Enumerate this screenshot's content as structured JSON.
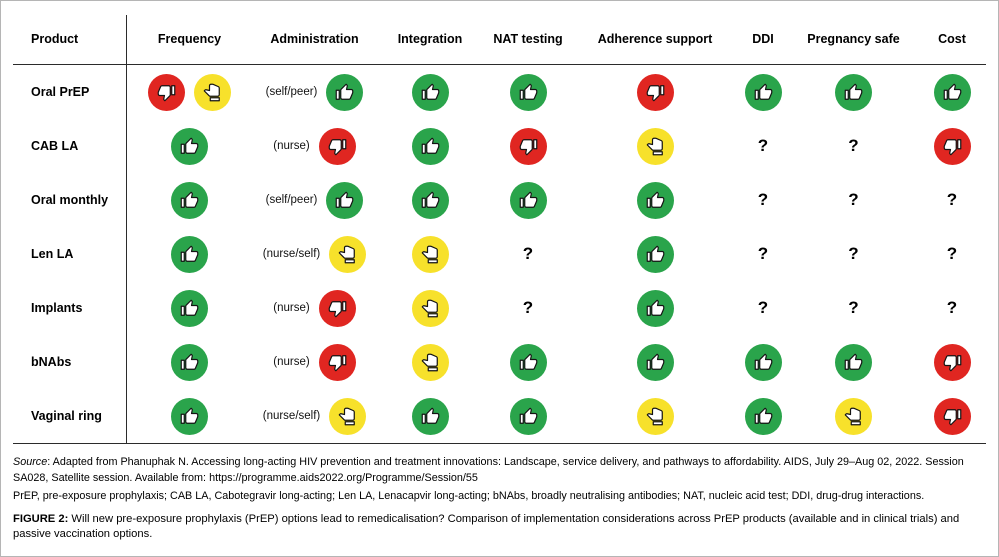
{
  "colors": {
    "green": "#2aa44b",
    "red": "#e02621",
    "yellow": "#f7e12b",
    "thumb_fill": "#ffffff",
    "thumb_stroke": "#141414",
    "line": "#2b2b2b"
  },
  "table": {
    "columns": [
      "Product",
      "Frequency",
      "Administration",
      "Integration",
      "NAT testing",
      "Adherence support",
      "DDI",
      "Pregnancy safe",
      "Cost"
    ],
    "question_mark": "?",
    "legend": {
      "positive": "green thumbs-up icon",
      "negative": "red thumbs-down icon",
      "neutral": "yellow thumbs-sideways icon",
      "unknown": "question mark"
    },
    "rows": [
      {
        "product": "Oral PrEP",
        "cells": [
          [
            "negative",
            "neutral"
          ],
          [
            "(self/peer)",
            "positive"
          ],
          [
            "positive"
          ],
          [
            "positive"
          ],
          [
            "negative"
          ],
          [
            "positive"
          ],
          [
            "positive"
          ],
          [
            "positive"
          ]
        ]
      },
      {
        "product": "CAB LA",
        "cells": [
          [
            "positive"
          ],
          [
            "(nurse)",
            "negative"
          ],
          [
            "positive"
          ],
          [
            "negative"
          ],
          [
            "neutral"
          ],
          [
            "unknown"
          ],
          [
            "unknown"
          ],
          [
            "negative"
          ]
        ]
      },
      {
        "product": "Oral monthly",
        "cells": [
          [
            "positive"
          ],
          [
            "(self/peer)",
            "positive"
          ],
          [
            "positive"
          ],
          [
            "positive"
          ],
          [
            "positive"
          ],
          [
            "unknown"
          ],
          [
            "unknown"
          ],
          [
            "unknown"
          ]
        ]
      },
      {
        "product": "Len LA",
        "cells": [
          [
            "positive"
          ],
          [
            "(nurse/self)",
            "neutral"
          ],
          [
            "neutral"
          ],
          [
            "unknown"
          ],
          [
            "positive"
          ],
          [
            "unknown"
          ],
          [
            "unknown"
          ],
          [
            "unknown"
          ]
        ]
      },
      {
        "product": "Implants",
        "cells": [
          [
            "positive"
          ],
          [
            "(nurse)",
            "negative"
          ],
          [
            "neutral"
          ],
          [
            "unknown"
          ],
          [
            "positive"
          ],
          [
            "unknown"
          ],
          [
            "unknown"
          ],
          [
            "unknown"
          ]
        ]
      },
      {
        "product": "bNAbs",
        "cells": [
          [
            "positive"
          ],
          [
            "(nurse)",
            "negative"
          ],
          [
            "neutral"
          ],
          [
            "positive"
          ],
          [
            "positive"
          ],
          [
            "positive"
          ],
          [
            "positive"
          ],
          [
            "negative"
          ]
        ]
      },
      {
        "product": "Vaginal ring",
        "cells": [
          [
            "positive"
          ],
          [
            "(nurse/self)",
            "neutral"
          ],
          [
            "positive"
          ],
          [
            "positive"
          ],
          [
            "neutral"
          ],
          [
            "positive"
          ],
          [
            "neutral"
          ],
          [
            "negative"
          ]
        ]
      }
    ]
  },
  "footer": {
    "source_label": "Source",
    "source_text": ": Adapted from Phanuphak N. Accessing long-acting HIV prevention and treatment innovations: Landscape, service delivery, and pathways to affordability. AIDS, July 29–Aug 02, 2022. Session SA028, Satellite session. Available from: ",
    "source_url": "https://programme.aids2022.org/Programme/Session/55",
    "abbreviations": "PrEP, pre-exposure prophylaxis; CAB LA, Cabotegravir long-acting; Len LA, Lenacapvir long-acting; bNAbs, broadly neutralising antibodies; NAT, nucleic acid test; DDI, drug-drug interactions.",
    "figure_label": "FIGURE 2:",
    "figure_caption": " Will new pre-exposure prophylaxis (PrEP) options lead to remedicalisation? Comparison of implementation considerations across PrEP products (available and in clinical trials) and passive vaccination options."
  }
}
